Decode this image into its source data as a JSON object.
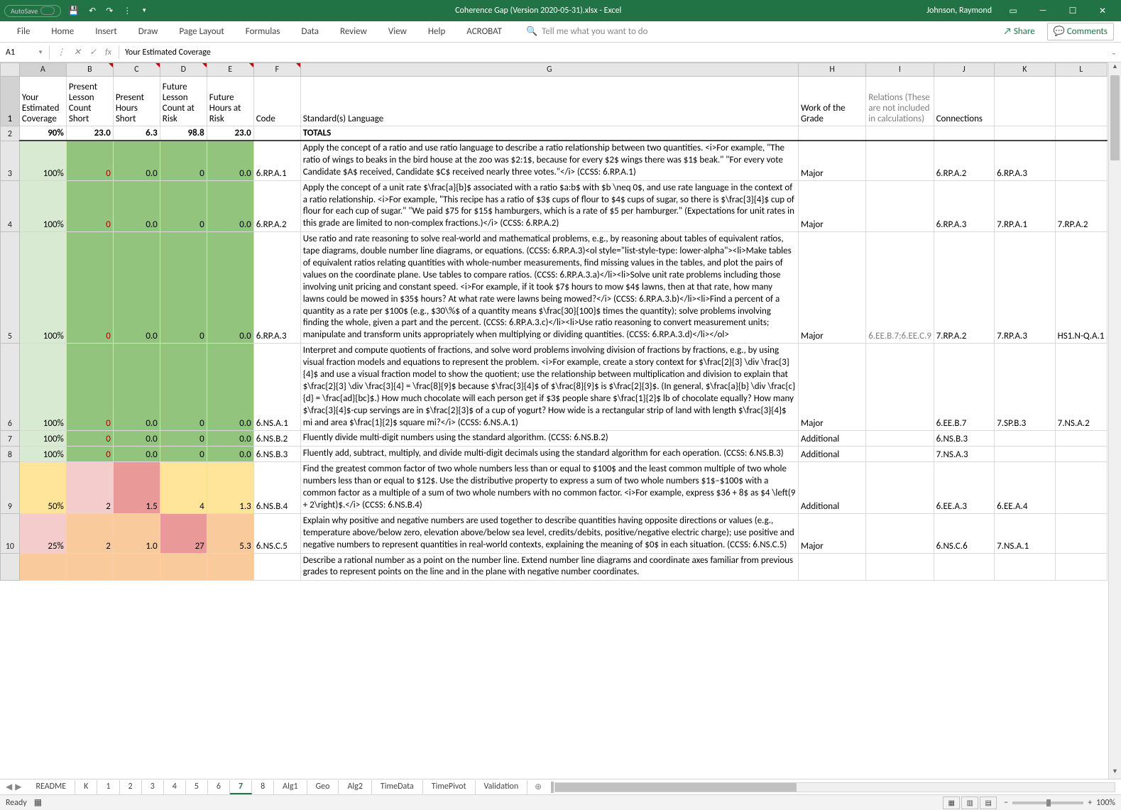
{
  "titlebar": {
    "autosave_label": "AutoSave",
    "filename": "Coherence Gap (Version 2020-05-31).xlsx  -  Excel",
    "username": "Johnson, Raymond"
  },
  "ribbon": {
    "tabs": [
      "File",
      "Home",
      "Insert",
      "Draw",
      "Page Layout",
      "Formulas",
      "Data",
      "Review",
      "View",
      "Help",
      "ACROBAT"
    ],
    "tellme": "Tell me what you want to do",
    "share": "Share",
    "comments": "Comments"
  },
  "formulabar": {
    "cellref": "A1",
    "formula": "Your Estimated Coverage"
  },
  "columns": {
    "widths": {
      "rowhdr": 22,
      "A": 54,
      "B": 54,
      "C": 54,
      "D": 54,
      "E": 54,
      "F": 54,
      "G": 574,
      "H": 78,
      "I": 78,
      "J": 70,
      "K": 70,
      "L": 60
    },
    "letters": [
      "A",
      "B",
      "C",
      "D",
      "E",
      "F",
      "G",
      "H",
      "I",
      "J",
      "K",
      "L"
    ]
  },
  "headers": {
    "A": "Your Estimated Coverage",
    "B": "Present Lesson Count Short",
    "C": "Present Hours Short",
    "D": "Future Lesson Count at Risk",
    "E": "Future Hours at Risk",
    "F": "Code",
    "G": "Standard(s) Language",
    "H": "Work of the Grade",
    "I": "Relations (These are not included in calculations)",
    "J": "Connections",
    "K": "",
    "L": ""
  },
  "totals": {
    "rownum": "2",
    "A": "90%",
    "B": "23.0",
    "C": "6.3",
    "D": "98.8",
    "E": "23.0",
    "G": "TOTALS"
  },
  "rows": [
    {
      "rownum": "3",
      "A": "100%",
      "B": "0",
      "C": "0.0",
      "D": "0",
      "E": "0.0",
      "F": "6.RP.A.1",
      "G": "Apply the concept of a ratio and use ratio language to describe a ratio relationship between two quantities. <i>For example, \"The ratio of wings to beaks in the bird house at the zoo was $2:1$, because for every $2$ wings there was $1$ beak.\" \"For every vote Candidate $A$ received, Candidate $C$ received nearly three votes.\"</i> (CCSS: 6.RP.A.1)",
      "H": "Major",
      "I": "",
      "J": "6.RP.A.2",
      "K": "6.RP.A.3",
      "L": "",
      "colors": {
        "A": "#d9ead3",
        "B": "#93c47d",
        "C": "#93c47d",
        "D": "#93c47d",
        "E": "#93c47d",
        "Btxt": "#a00"
      }
    },
    {
      "rownum": "4",
      "A": "100%",
      "B": "0",
      "C": "0.0",
      "D": "0",
      "E": "0.0",
      "F": "6.RP.A.2",
      "G": "Apply the concept of a unit rate $\\frac{a}{b}$ associated with a ratio $a:b$ with $b \\neq 0$, and use rate language in the context of a ratio relationship. <i>For example, \"This recipe has a ratio of $3$ cups of flour to $4$ cups of sugar, so there is $\\frac{3}{4}$ cup of flour for each cup of sugar.\" \"We paid $75 for $15$ hamburgers, which is a rate of $5 per hamburger.\" (Expectations for unit rates in this grade are limited to non-complex fractions.)</i> (CCSS: 6.RP.A.2)",
      "H": "Major",
      "I": "",
      "J": "6.RP.A.3",
      "K": "7.RP.A.1",
      "L": "7.RP.A.2",
      "colors": {
        "A": "#d9ead3",
        "B": "#93c47d",
        "C": "#93c47d",
        "D": "#93c47d",
        "E": "#93c47d",
        "Btxt": "#a00"
      }
    },
    {
      "rownum": "5",
      "A": "100%",
      "B": "0",
      "C": "0.0",
      "D": "0",
      "E": "0.0",
      "F": "6.RP.A.3",
      "G": "Use ratio and rate reasoning to solve real-world and mathematical problems, e.g., by reasoning about tables of equivalent ratios, tape diagrams, double number line diagrams, or equations. (CCSS: 6.RP.A.3)<ol style=\"list-style-type: lower-alpha\"><li>Make tables of equivalent ratios relating quantities with whole-number measurements, find missing values in the tables, and plot the pairs of values on the coordinate plane. Use tables to compare ratios. (CCSS: 6.RP.A.3.a)</li><li>Solve unit rate problems including those involving unit pricing and constant speed. <i>For example, if it took $7$ hours to mow $4$ lawns, then at that rate, how many lawns could be mowed in $35$ hours? At what rate were lawns being mowed?</i> (CCSS: 6.RP.A.3.b)</li><li>Find a percent of a quantity as a rate per $100$ (e.g., $30\\%$ of a quantity means $\\frac{30}{100}$ times the quantity); solve problems involving finding the whole, given a part and the percent. (CCSS: 6.RP.A.3.c)</li><li>Use ratio reasoning to convert measurement units; manipulate and transform units appropriately when multiplying or dividing quantities. (CCSS: 6.RP.A.3.d)</li></ol>",
      "H": "Major",
      "I": "6.EE.B.7;6.EE.C.9",
      "J": "7.RP.A.2",
      "K": "7.RP.A.3",
      "L": "HS1.N-Q.A.1",
      "colors": {
        "A": "#d9ead3",
        "B": "#93c47d",
        "C": "#93c47d",
        "D": "#93c47d",
        "E": "#93c47d",
        "Btxt": "#a00"
      }
    },
    {
      "rownum": "6",
      "A": "100%",
      "B": "0",
      "C": "0.0",
      "D": "0",
      "E": "0.0",
      "F": "6.NS.A.1",
      "G": "Interpret and compute quotients of fractions, and solve word problems involving division of fractions by fractions, e.g., by using visual fraction models and equations to represent the problem. <i>For example, create a story context for $\\frac{2}{3} \\div \\frac{3}{4}$ and use a visual fraction model to show the quotient; use the relationship between multiplication and division to explain that $\\frac{2}{3} \\div \\frac{3}{4} = \\frac{8}{9}$ because $\\frac{3}{4}$ of $\\frac{8}{9}$ is $\\frac{2}{3}$. (In general, $\\frac{a}{b} \\div \\frac{c}{d} = \\frac{ad}{bc}$.) How much chocolate will each person get if $3$ people share $\\frac{1}{2}$ lb of chocolate equally? How many $\\frac{3}{4}$-cup servings are in $\\frac{2}{3}$ of a cup of yogurt? How wide is a rectangular strip of land with length $\\frac{3}{4}$ mi and area $\\frac{1}{2}$ square mi?</i> (CCSS: 6.NS.A.1)",
      "H": "Major",
      "I": "",
      "J": "6.EE.B.7",
      "K": "7.SP.B.3",
      "L": "7.NS.A.2",
      "colors": {
        "A": "#d9ead3",
        "B": "#93c47d",
        "C": "#93c47d",
        "D": "#93c47d",
        "E": "#93c47d",
        "Btxt": "#a00"
      }
    },
    {
      "rownum": "7",
      "A": "100%",
      "B": "0",
      "C": "0.0",
      "D": "0",
      "E": "0.0",
      "F": "6.NS.B.2",
      "G": "Fluently divide multi-digit numbers using the standard algorithm. (CCSS: 6.NS.B.2)",
      "H": "Additional",
      "I": "",
      "J": "6.NS.B.3",
      "K": "",
      "L": "",
      "colors": {
        "A": "#d9ead3",
        "B": "#93c47d",
        "C": "#93c47d",
        "D": "#93c47d",
        "E": "#93c47d",
        "Btxt": "#a00"
      }
    },
    {
      "rownum": "8",
      "A": "100%",
      "B": "0",
      "C": "0.0",
      "D": "0",
      "E": "0.0",
      "F": "6.NS.B.3",
      "G": "Fluently add, subtract, multiply, and divide multi-digit decimals using the standard algorithm for each operation. (CCSS: 6.NS.B.3)",
      "H": "Additional",
      "I": "",
      "J": "7.NS.A.3",
      "K": "",
      "L": "",
      "colors": {
        "A": "#d9ead3",
        "B": "#93c47d",
        "C": "#93c47d",
        "D": "#93c47d",
        "E": "#93c47d",
        "Btxt": "#a00"
      }
    },
    {
      "rownum": "9",
      "A": "50%",
      "B": "2",
      "C": "1.5",
      "D": "4",
      "E": "1.3",
      "F": "6.NS.B.4",
      "G": "Find the greatest common factor of two whole numbers less than or equal to $100$ and the least common multiple of two whole numbers less than or equal to $12$. Use the distributive property to express a sum of two whole numbers $1$–$100$ with a common factor as a multiple of a sum of two whole numbers with no common factor. <i>For example, express $36 + 8$ as $4 \\left(9 + 2\\right)$.</i> (CCSS: 6.NS.B.4)",
      "H": "Additional",
      "I": "",
      "J": "6.EE.A.3",
      "K": "6.EE.A.4",
      "L": "",
      "colors": {
        "A": "#ffe599",
        "B": "#f4cccc",
        "C": "#ea9999",
        "D": "#ffe599",
        "E": "#ffe599",
        "Btxt": "#000"
      }
    },
    {
      "rownum": "10",
      "A": "25%",
      "B": "2",
      "C": "1.0",
      "D": "27",
      "E": "5.3",
      "F": "6.NS.C.5",
      "G": "Explain why positive and negative numbers are used together to describe quantities having opposite directions or values (e.g., temperature above/below zero, elevation above/below sea level, credits/debits, positive/negative electric charge); use positive and negative numbers to represent quantities in real-world contexts, explaining the meaning of $0$ in each situation. (CCSS: 6.NS.C.5)",
      "H": "Major",
      "I": "",
      "J": "6.NS.C.6",
      "K": "7.NS.A.1",
      "L": "",
      "colors": {
        "A": "#f4cccc",
        "B": "#f9cb9c",
        "C": "#f9cb9c",
        "D": "#ea9999",
        "E": "#f9cb9c",
        "Btxt": "#000"
      }
    },
    {
      "rownum": "",
      "A": "",
      "B": "",
      "C": "",
      "D": "",
      "E": "",
      "F": "",
      "G": "Describe a rational number as a point on the number line. Extend number line diagrams and coordinate axes familiar from previous grades to represent points on the line and in the plane with negative number coordinates.",
      "H": "",
      "I": "",
      "J": "",
      "K": "",
      "L": "",
      "colors": {
        "A": "#f9cb9c",
        "B": "#f9cb9c",
        "C": "#f9cb9c",
        "D": "#f9cb9c",
        "E": "#f9cb9c",
        "Btxt": "#000"
      }
    }
  ],
  "sheettabs": {
    "tabs": [
      "README",
      "K",
      "1",
      "2",
      "3",
      "4",
      "5",
      "6",
      "7",
      "8",
      "Alg1",
      "Geo",
      "Alg2",
      "TimeData",
      "TimePivot",
      "Validation"
    ],
    "active_index": 8
  },
  "statusbar": {
    "ready": "Ready",
    "zoom": "100%"
  },
  "colors": {
    "excel_green": "#217346",
    "header_bg": "#e6e6e6",
    "grid_border": "#d9d9d9",
    "I_header_color": "#808080"
  }
}
